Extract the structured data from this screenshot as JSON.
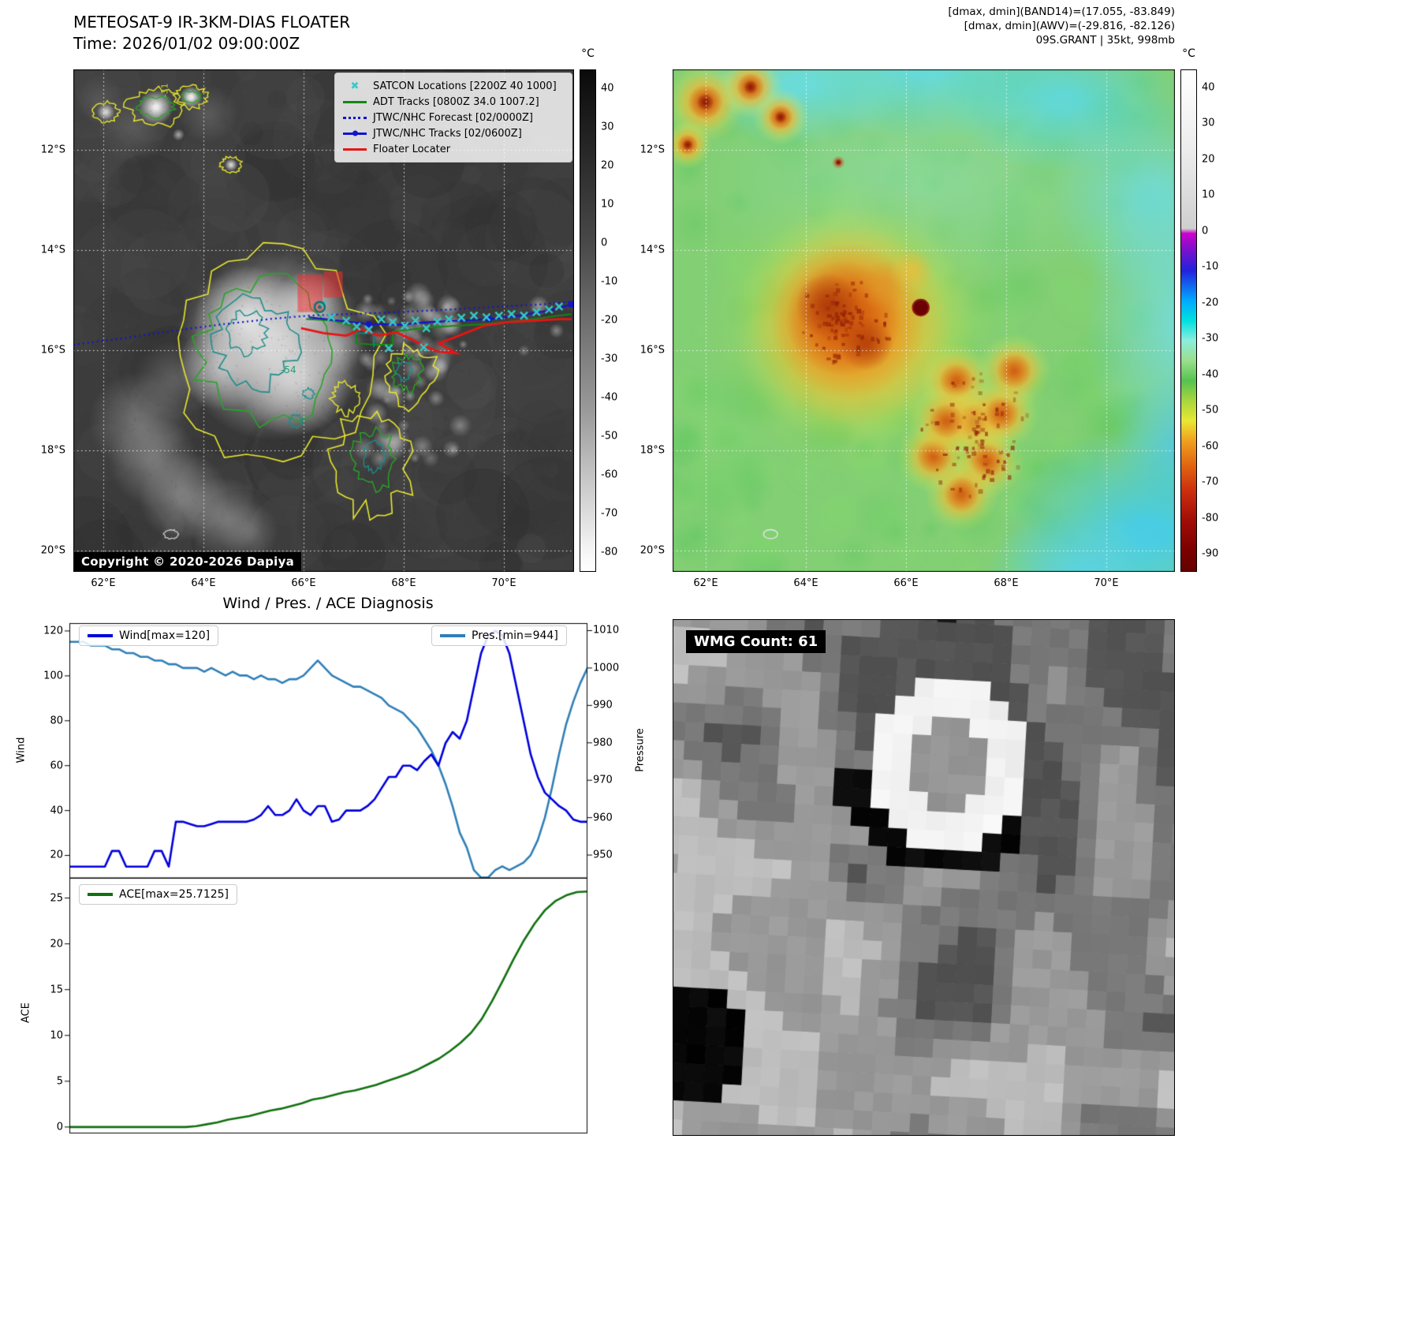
{
  "ir_panel": {
    "title": "METEOSAT-9 IR-3KM-DIAS FLOATER",
    "subtitle": "Time: 2026/01/02 09:00:00Z",
    "legend": [
      {
        "label": "SATCON Locations [2200Z 40 1000]",
        "marker": "x",
        "color": "#3fc8c8"
      },
      {
        "label": "ADT Tracks [0800Z 34.0 1007.2]",
        "marker": "line",
        "color": "#138813"
      },
      {
        "label": "JTWC/NHC Forecast [02/0000Z]",
        "marker": "dotted-line",
        "color": "#1414cc"
      },
      {
        "label": "JTWC/NHC Tracks [02/0600Z]",
        "marker": "line-dot",
        "color": "#1414cc"
      },
      {
        "label": "Floater Locater",
        "marker": "line",
        "color": "#e81414"
      }
    ],
    "copyright": "Copyright © 2020-2026 Dapiya",
    "contour_labels": [
      "-54",
      "-31"
    ],
    "lat_ticks": [
      "12°S",
      "14°S",
      "16°S",
      "18°S",
      "20°S"
    ],
    "lon_ticks": [
      "62°E",
      "64°E",
      "66°E",
      "68°E",
      "70°E"
    ],
    "colorbar_unit": "°C",
    "colorbar_ticks": [
      40,
      30,
      20,
      10,
      0,
      -10,
      -20,
      -30,
      -40,
      -50,
      -60,
      -70,
      -80
    ]
  },
  "awv_panel": {
    "header_line1": "[dmax, dmin](BAND14)=(17.055, -83.849)",
    "header_line2": "[dmax, dmin](AWV)=(-29.816, -82.126)",
    "header_line3": "09S.GRANT | 35kt, 998mb",
    "lat_ticks": [
      "12°S",
      "14°S",
      "16°S",
      "18°S",
      "20°S"
    ],
    "lon_ticks": [
      "62°E",
      "64°E",
      "66°E",
      "68°E",
      "70°E"
    ],
    "colorbar_unit": "°C",
    "colorbar_ticks": [
      40,
      30,
      20,
      10,
      0,
      -10,
      -20,
      -30,
      -40,
      -50,
      -60,
      -70,
      -80,
      -90
    ]
  },
  "diagnosis_panel": {
    "title": "Wind / Pres. / ACE Diagnosis",
    "wind_axis_label": "Wind",
    "pressure_axis_label": "Pressure",
    "ace_axis_label": "ACE"
  },
  "wmg_panel": {
    "label": "WMG Count: 61"
  },
  "chart_data": [
    {
      "type": "line",
      "title": "Wind / Pres. / ACE Diagnosis",
      "legend_position": "wind upper-left, pressure upper-right",
      "series": [
        {
          "name": "Wind[max=120]",
          "yaxis": "left",
          "color": "#0000dd",
          "values": [
            15,
            15,
            15,
            15,
            15,
            15,
            22,
            22,
            15,
            15,
            15,
            15,
            22,
            22,
            15,
            35,
            35,
            34,
            33,
            33,
            34,
            35,
            35,
            35,
            35,
            35,
            36,
            38,
            42,
            38,
            38,
            40,
            45,
            40,
            38,
            42,
            42,
            35,
            36,
            40,
            40,
            40,
            42,
            45,
            50,
            55,
            55,
            60,
            60,
            58,
            62,
            65,
            60,
            70,
            75,
            72,
            80,
            95,
            110,
            118,
            120,
            118,
            110,
            95,
            80,
            65,
            55,
            48,
            45,
            42,
            40,
            36,
            35,
            35
          ]
        },
        {
          "name": "Pres.[min=944]",
          "yaxis": "right",
          "color": "#2f7fb8",
          "values": [
            1007,
            1007,
            1007,
            1006,
            1006,
            1006,
            1005,
            1005,
            1004,
            1004,
            1003,
            1003,
            1002,
            1002,
            1001,
            1001,
            1000,
            1000,
            1000,
            999,
            1000,
            999,
            998,
            999,
            998,
            998,
            997,
            998,
            997,
            997,
            996,
            997,
            997,
            998,
            1000,
            1002,
            1000,
            998,
            997,
            996,
            995,
            995,
            994,
            993,
            992,
            990,
            989,
            988,
            986,
            984,
            981,
            978,
            974,
            969,
            963,
            956,
            952,
            946,
            944,
            944,
            946,
            947,
            946,
            947,
            948,
            950,
            954,
            960,
            968,
            977,
            985,
            991,
            996,
            1000
          ]
        }
      ],
      "left_axis": {
        "label": "Wind",
        "ticks": [
          20,
          40,
          60,
          80,
          100,
          120
        ],
        "range": [
          10,
          123.5
        ]
      },
      "right_axis": {
        "label": "Pressure",
        "ticks": [
          950,
          960,
          970,
          980,
          990,
          1000,
          1010
        ],
        "range": [
          943.9,
          1012
        ]
      }
    },
    {
      "type": "line",
      "legend_position": "upper-left",
      "series": [
        {
          "name": "ACE[max=25.7125]",
          "yaxis": "left",
          "color": "#107010",
          "values": [
            0,
            0,
            0,
            0,
            0,
            0,
            0,
            0,
            0,
            0,
            0,
            0,
            0.1,
            0.3,
            0.5,
            0.8,
            1,
            1.2,
            1.5,
            1.8,
            2,
            2.3,
            2.6,
            3,
            3.2,
            3.5,
            3.8,
            4,
            4.3,
            4.6,
            5,
            5.4,
            5.8,
            6.3,
            6.9,
            7.5,
            8.3,
            9.2,
            10.3,
            11.8,
            13.8,
            16,
            18.3,
            20.4,
            22.2,
            23.7,
            24.7,
            25.3,
            25.65,
            25.7125
          ]
        }
      ],
      "left_axis": {
        "label": "ACE",
        "ticks": [
          0,
          5,
          10,
          15,
          20,
          25
        ],
        "range": [
          -0.7,
          27.2
        ]
      }
    }
  ]
}
